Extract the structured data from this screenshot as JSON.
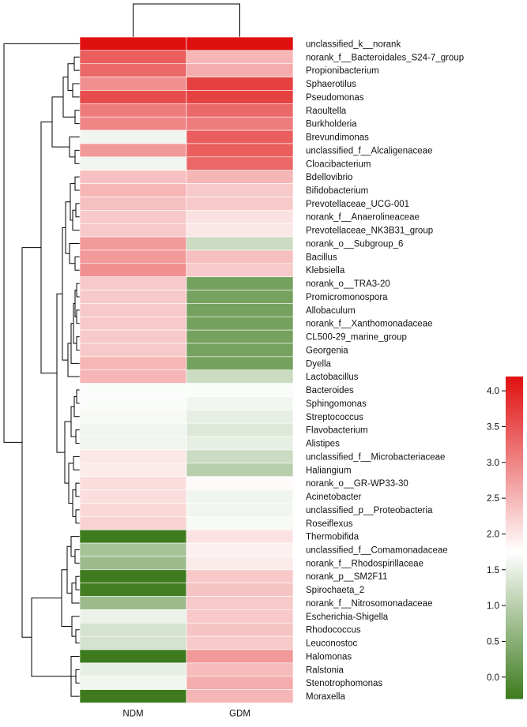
{
  "chart_data": {
    "type": "heatmap",
    "title": "",
    "columns": [
      "NDM",
      "GDM"
    ],
    "rows": [
      "unclassified_k__norank",
      "norank_f__Bacteroidales_S24-7_group",
      "Propionibacterium",
      "Sphaerotilus",
      "Pseudomonas",
      "Raoultella",
      "Burkholderia",
      "Brevundimonas",
      "unclassified_f__Alcaligenaceae",
      "Cloacibacterium",
      "Bdellovibrio",
      "Bifidobacterium",
      "Prevotellaceae_UCG-001",
      "norank_f__Anaerolineaceae",
      "Prevotellaceae_NK3B31_group",
      "norank_o__Subgroup_6",
      "Bacillus",
      "Klebsiella",
      "norank_o__TRA3-20",
      "Promicromonospora",
      "Allobaculum",
      "norank_f__Xanthomonadaceae",
      "CL500-29_marine_group",
      "Georgenia",
      "Dyella",
      "Lactobacillus",
      "Bacteroides",
      "Sphingomonas",
      "Streptococcus",
      "Flavobacterium",
      "Alistipes",
      "unclassified_f__Microbacteriaceae",
      "Haliangium",
      "norank_o__GR-WP33-30",
      "Acinetobacter",
      "unclassified_p__Proteobacteria",
      "Roseiflexus",
      "Thermobifida",
      "unclassified_f__Comamonadaceae",
      "norank_f__Rhodospirillaceae",
      "norank_p__SM2F11",
      "Spirochaeta_2",
      "norank_f__Nitrosomonadaceae",
      "Escherichia-Shigella",
      "Rhodococcus",
      "Leuconostoc",
      "Halomonas",
      "Ralstonia",
      "Stenotrophomonas",
      "Moraxella"
    ],
    "values": [
      [
        4.2,
        4.2
      ],
      [
        3.4,
        2.5
      ],
      [
        3.3,
        2.6
      ],
      [
        2.9,
        3.7
      ],
      [
        3.6,
        3.7
      ],
      [
        3.1,
        3.3
      ],
      [
        3.0,
        3.1
      ],
      [
        1.6,
        3.4
      ],
      [
        2.8,
        3.4
      ],
      [
        1.6,
        3.3
      ],
      [
        2.4,
        2.5
      ],
      [
        2.5,
        2.3
      ],
      [
        2.4,
        2.3
      ],
      [
        2.3,
        2.05
      ],
      [
        2.3,
        2.0
      ],
      [
        2.8,
        1.2
      ],
      [
        2.8,
        2.4
      ],
      [
        2.9,
        2.3
      ],
      [
        2.3,
        0.3
      ],
      [
        2.3,
        0.3
      ],
      [
        2.3,
        0.3
      ],
      [
        2.3,
        0.3
      ],
      [
        2.3,
        0.3
      ],
      [
        2.3,
        0.3
      ],
      [
        2.5,
        0.3
      ],
      [
        2.5,
        1.2
      ],
      [
        1.7,
        1.7
      ],
      [
        1.7,
        1.6
      ],
      [
        1.65,
        1.5
      ],
      [
        1.6,
        1.4
      ],
      [
        1.6,
        1.5
      ],
      [
        2.0,
        1.2
      ],
      [
        1.95,
        1.0
      ],
      [
        2.1,
        1.8
      ],
      [
        2.1,
        1.6
      ],
      [
        2.15,
        1.6
      ],
      [
        2.2,
        1.65
      ],
      [
        -0.3,
        2.05
      ],
      [
        0.8,
        1.9
      ],
      [
        0.7,
        1.95
      ],
      [
        -0.3,
        2.3
      ],
      [
        -0.25,
        2.35
      ],
      [
        0.7,
        2.3
      ],
      [
        1.55,
        2.3
      ],
      [
        1.3,
        2.35
      ],
      [
        1.3,
        2.3
      ],
      [
        -0.3,
        2.8
      ],
      [
        1.5,
        2.45
      ],
      [
        1.6,
        2.6
      ],
      [
        -0.3,
        2.5
      ]
    ],
    "colorbar": {
      "min": -0.3,
      "max": 4.2,
      "ticks": [
        0.0,
        0.5,
        1.0,
        1.5,
        2.0,
        2.5,
        3.0,
        3.5,
        4.0
      ],
      "tick_labels": [
        "0.0",
        "0.5",
        "1.0",
        "1.5",
        "2.0",
        "2.5",
        "3.0",
        "3.5",
        "4.0"
      ],
      "colors": [
        "#3e7b1e",
        "#ffffff",
        "#e01010"
      ]
    },
    "row_dendrogram": true,
    "column_dendrogram": true
  }
}
